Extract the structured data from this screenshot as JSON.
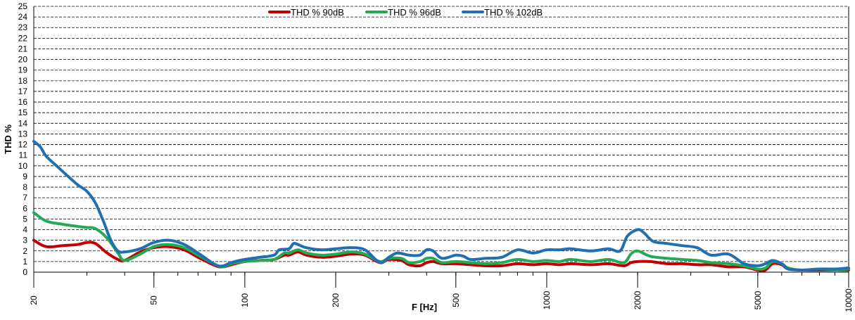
{
  "chart_data": {
    "type": "line",
    "xlabel": "F [Hz]",
    "ylabel": "THD %",
    "x_scale": "log",
    "xlim": [
      20,
      10000
    ],
    "ylim": [
      0,
      25
    ],
    "grid": true,
    "legend_position": "top-center",
    "y_ticks": [
      "0",
      "1",
      "2",
      "3",
      "4",
      "5",
      "6",
      "7",
      "8",
      "9",
      "10",
      "11",
      "12",
      "13",
      "14",
      "15",
      "16",
      "17",
      "18",
      "19",
      "20",
      "21",
      "22",
      "23",
      "24",
      "25"
    ],
    "x_ticks": [
      {
        "value": 20,
        "label": "20"
      },
      {
        "value": 50,
        "label": "50"
      },
      {
        "value": 100,
        "label": "100"
      },
      {
        "value": 200,
        "label": "200"
      },
      {
        "value": 500,
        "label": "500"
      },
      {
        "value": 1000,
        "label": "1000"
      },
      {
        "value": 2000,
        "label": "2000"
      },
      {
        "value": 5000,
        "label": "5000"
      },
      {
        "value": 10000,
        "label": "10000"
      }
    ],
    "series": [
      {
        "name": "THD % 90dB",
        "color": "#c00000",
        "points": [
          [
            20,
            3.0
          ],
          [
            22,
            2.4
          ],
          [
            25,
            2.5
          ],
          [
            28,
            2.6
          ],
          [
            30,
            2.8
          ],
          [
            32,
            2.7
          ],
          [
            35,
            1.8
          ],
          [
            38,
            1.2
          ],
          [
            40,
            1.1
          ],
          [
            45,
            1.9
          ],
          [
            50,
            2.3
          ],
          [
            56,
            2.4
          ],
          [
            63,
            2.1
          ],
          [
            70,
            1.4
          ],
          [
            80,
            0.6
          ],
          [
            85,
            0.5
          ],
          [
            90,
            0.7
          ],
          [
            100,
            1.0
          ],
          [
            112,
            1.1
          ],
          [
            125,
            1.2
          ],
          [
            135,
            1.6
          ],
          [
            140,
            1.6
          ],
          [
            150,
            1.9
          ],
          [
            160,
            1.6
          ],
          [
            180,
            1.4
          ],
          [
            200,
            1.5
          ],
          [
            225,
            1.7
          ],
          [
            250,
            1.6
          ],
          [
            280,
            0.9
          ],
          [
            300,
            1.2
          ],
          [
            330,
            1.1
          ],
          [
            350,
            0.7
          ],
          [
            380,
            0.6
          ],
          [
            400,
            0.9
          ],
          [
            420,
            1.0
          ],
          [
            450,
            0.8
          ],
          [
            500,
            0.8
          ],
          [
            560,
            0.7
          ],
          [
            630,
            0.6
          ],
          [
            710,
            0.6
          ],
          [
            800,
            0.8
          ],
          [
            900,
            0.7
          ],
          [
            1000,
            0.8
          ],
          [
            1100,
            0.7
          ],
          [
            1200,
            0.8
          ],
          [
            1400,
            0.7
          ],
          [
            1600,
            0.8
          ],
          [
            1800,
            0.6
          ],
          [
            1900,
            0.9
          ],
          [
            2000,
            1.0
          ],
          [
            2200,
            1.0
          ],
          [
            2500,
            0.8
          ],
          [
            2800,
            0.8
          ],
          [
            3150,
            0.7
          ],
          [
            3500,
            0.7
          ],
          [
            4000,
            0.5
          ],
          [
            4500,
            0.5
          ],
          [
            5000,
            0.2
          ],
          [
            5300,
            0.2
          ],
          [
            5600,
            0.8
          ],
          [
            6000,
            0.7
          ],
          [
            6300,
            0.3
          ],
          [
            7000,
            0.2
          ],
          [
            8000,
            0.2
          ],
          [
            9000,
            0.2
          ],
          [
            10000,
            0.2
          ]
        ]
      },
      {
        "name": "THD % 96dB",
        "color": "#22aa55",
        "points": [
          [
            20,
            5.6
          ],
          [
            22,
            4.8
          ],
          [
            25,
            4.5
          ],
          [
            28,
            4.3
          ],
          [
            30,
            4.2
          ],
          [
            32,
            4.1
          ],
          [
            35,
            3.2
          ],
          [
            38,
            1.8
          ],
          [
            40,
            1.1
          ],
          [
            45,
            1.7
          ],
          [
            50,
            2.4
          ],
          [
            56,
            2.6
          ],
          [
            63,
            2.3
          ],
          [
            70,
            1.6
          ],
          [
            80,
            0.7
          ],
          [
            85,
            0.5
          ],
          [
            90,
            0.8
          ],
          [
            100,
            1.0
          ],
          [
            112,
            1.1
          ],
          [
            125,
            1.2
          ],
          [
            135,
            1.8
          ],
          [
            140,
            1.8
          ],
          [
            150,
            2.1
          ],
          [
            160,
            1.8
          ],
          [
            180,
            1.6
          ],
          [
            200,
            1.7
          ],
          [
            225,
            1.9
          ],
          [
            250,
            1.7
          ],
          [
            280,
            1.0
          ],
          [
            300,
            1.3
          ],
          [
            330,
            1.3
          ],
          [
            350,
            0.9
          ],
          [
            380,
            1.0
          ],
          [
            400,
            1.3
          ],
          [
            420,
            1.3
          ],
          [
            450,
            0.9
          ],
          [
            500,
            1.0
          ],
          [
            560,
            0.9
          ],
          [
            630,
            0.8
          ],
          [
            710,
            0.9
          ],
          [
            800,
            1.2
          ],
          [
            900,
            1.0
          ],
          [
            1000,
            1.1
          ],
          [
            1100,
            1.0
          ],
          [
            1200,
            1.2
          ],
          [
            1400,
            1.0
          ],
          [
            1600,
            1.2
          ],
          [
            1800,
            0.9
          ],
          [
            1900,
            1.7
          ],
          [
            2000,
            2.0
          ],
          [
            2200,
            1.5
          ],
          [
            2500,
            1.3
          ],
          [
            2800,
            1.2
          ],
          [
            3150,
            1.1
          ],
          [
            3500,
            0.9
          ],
          [
            4000,
            0.8
          ],
          [
            4500,
            0.6
          ],
          [
            5000,
            0.3
          ],
          [
            5300,
            0.4
          ],
          [
            5600,
            1.0
          ],
          [
            6000,
            0.8
          ],
          [
            6300,
            0.4
          ],
          [
            7000,
            0.2
          ],
          [
            8000,
            0.3
          ],
          [
            9000,
            0.2
          ],
          [
            10000,
            0.3
          ]
        ]
      },
      {
        "name": "THD % 102dB",
        "color": "#1f6fb2",
        "points": [
          [
            20,
            12.3
          ],
          [
            21,
            11.8
          ],
          [
            22,
            10.9
          ],
          [
            24,
            9.9
          ],
          [
            26,
            9.0
          ],
          [
            28,
            8.2
          ],
          [
            30,
            7.6
          ],
          [
            32,
            6.5
          ],
          [
            34,
            4.8
          ],
          [
            36,
            3.0
          ],
          [
            38,
            2.0
          ],
          [
            40,
            1.9
          ],
          [
            45,
            2.2
          ],
          [
            50,
            2.8
          ],
          [
            56,
            3.0
          ],
          [
            63,
            2.6
          ],
          [
            70,
            1.8
          ],
          [
            80,
            0.7
          ],
          [
            85,
            0.6
          ],
          [
            90,
            0.9
          ],
          [
            100,
            1.2
          ],
          [
            112,
            1.4
          ],
          [
            125,
            1.6
          ],
          [
            130,
            2.1
          ],
          [
            140,
            2.2
          ],
          [
            145,
            2.7
          ],
          [
            150,
            2.6
          ],
          [
            160,
            2.3
          ],
          [
            180,
            2.1
          ],
          [
            200,
            2.2
          ],
          [
            225,
            2.3
          ],
          [
            250,
            2.1
          ],
          [
            280,
            0.9
          ],
          [
            300,
            1.4
          ],
          [
            320,
            1.8
          ],
          [
            350,
            1.6
          ],
          [
            380,
            1.6
          ],
          [
            400,
            2.1
          ],
          [
            420,
            2.0
          ],
          [
            450,
            1.3
          ],
          [
            500,
            1.6
          ],
          [
            530,
            1.5
          ],
          [
            560,
            1.2
          ],
          [
            630,
            1.3
          ],
          [
            710,
            1.4
          ],
          [
            800,
            2.1
          ],
          [
            900,
            1.8
          ],
          [
            1000,
            2.1
          ],
          [
            1100,
            2.1
          ],
          [
            1200,
            2.2
          ],
          [
            1400,
            2.0
          ],
          [
            1600,
            2.2
          ],
          [
            1750,
            2.0
          ],
          [
            1850,
            3.4
          ],
          [
            2000,
            4.0
          ],
          [
            2100,
            3.7
          ],
          [
            2250,
            2.9
          ],
          [
            2500,
            2.7
          ],
          [
            2800,
            2.5
          ],
          [
            3150,
            2.3
          ],
          [
            3500,
            1.6
          ],
          [
            4000,
            1.7
          ],
          [
            4500,
            0.8
          ],
          [
            5000,
            0.6
          ],
          [
            5300,
            0.8
          ],
          [
            5600,
            1.1
          ],
          [
            6000,
            0.8
          ],
          [
            6300,
            0.3
          ],
          [
            7000,
            0.2
          ],
          [
            8000,
            0.3
          ],
          [
            9000,
            0.3
          ],
          [
            10000,
            0.4
          ]
        ]
      }
    ]
  }
}
